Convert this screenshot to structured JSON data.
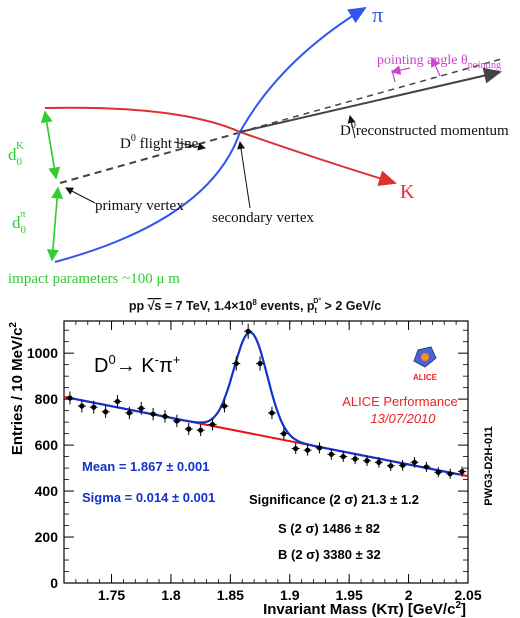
{
  "diagram": {
    "pi_label": "π",
    "k_label": "K",
    "pointing_label": "pointing angle θ",
    "pointing_sub": "pointing",
    "flight_line_label": "D",
    "flight_line_sup": "0",
    "flight_line_rest": " flight line",
    "reco_label": "D",
    "reco_sup": "0",
    "reco_rest": "reconstructed momentum",
    "primary_vertex": "primary vertex",
    "secondary_vertex": "secondary vertex",
    "d0k_main": "d",
    "d0k_sub": "0",
    "d0k_sup": "K",
    "d0pi_main": "d",
    "d0pi_sub": "0",
    "d0pi_sup": "π",
    "impact_parameters": "impact parameters ~100 μ m",
    "colors": {
      "pi_track": "#3355ee",
      "k_track": "#e03030",
      "pointing": "#cc44cc",
      "green": "#33cc33",
      "flight": "#444444"
    }
  },
  "chart_data": {
    "type": "scatter",
    "title": "pp √s = 7 TeV, 1.4×10⁸ events, p_t^{D⁰} > 2 GeV/c",
    "title_parts": {
      "a": "pp ",
      "b": "√s",
      "c": " = 7 TeV, 1.4×10",
      "d": "8",
      "e": " events, p",
      "f": "t",
      "g": "D°",
      "h": " > 2 GeV/c"
    },
    "xlabel": "Invariant Mass (Kπ) [GeV/c²]",
    "xlabel_main": "Invariant Mass (Kπ) [GeV/c",
    "xlabel_sup": "2",
    "xlabel_end": "]",
    "ylabel": "Entries / 10 MeV/c²",
    "ylabel_main": "Entries / 10 MeV/c",
    "ylabel_sup": "2",
    "xlim": [
      1.71,
      2.05
    ],
    "ylim": [
      0,
      1140
    ],
    "xticks": [
      1.75,
      1.8,
      1.85,
      1.9,
      1.95,
      2,
      2.05
    ],
    "xtick_labels": [
      "1.75",
      "1.8",
      "1.85",
      "1.9",
      "1.95",
      "2",
      "2.05"
    ],
    "yticks": [
      0,
      200,
      400,
      600,
      800,
      1000
    ],
    "ytick_labels": [
      "0",
      "200",
      "400",
      "600",
      "800",
      "1000"
    ],
    "points": {
      "x": [
        1.715,
        1.725,
        1.735,
        1.745,
        1.755,
        1.765,
        1.775,
        1.785,
        1.795,
        1.805,
        1.815,
        1.825,
        1.835,
        1.845,
        1.855,
        1.865,
        1.875,
        1.885,
        1.895,
        1.905,
        1.915,
        1.925,
        1.935,
        1.945,
        1.955,
        1.965,
        1.975,
        1.985,
        1.995,
        2.005,
        2.015,
        2.025,
        2.035,
        2.045
      ],
      "y": [
        805,
        770,
        765,
        745,
        790,
        740,
        760,
        735,
        725,
        705,
        670,
        665,
        690,
        770,
        955,
        1095,
        955,
        740,
        650,
        585,
        578,
        588,
        560,
        550,
        540,
        532,
        525,
        510,
        512,
        525,
        505,
        482,
        475,
        485
      ],
      "err": [
        28,
        28,
        28,
        27,
        28,
        27,
        28,
        27,
        27,
        27,
        26,
        26,
        26,
        28,
        31,
        33,
        31,
        27,
        25,
        24,
        24,
        24,
        24,
        23,
        23,
        23,
        23,
        23,
        23,
        23,
        22,
        22,
        22,
        22
      ]
    },
    "signal_fit": {
      "mean": 1.867,
      "sigma": 0.014,
      "amplitude": 440,
      "color": "#1133cc"
    },
    "background_fit": {
      "x": [
        1.71,
        2.05
      ],
      "y": [
        810,
        465
      ],
      "color": "#ee1111"
    },
    "decay_label": {
      "a": "D",
      "b": "0",
      "c": "→ K",
      "d": "-",
      "e": "π",
      "f": "+"
    },
    "mean_label": "Mean = 1.867 ± 0.001",
    "sigma_label": "Sigma = 0.014 ± 0.001",
    "significance_label": "Significance (2 σ) 21.3 ± 1.2",
    "s_label": "S (2 σ) 1486 ± 82",
    "b_label": "B (2 σ) 3380 ± 32",
    "alice_perf": "ALICE Performance",
    "alice_date": "13/07/2010",
    "alice_logo_text": "ALICE",
    "pwg_label": "PWG3-D2H-011",
    "colors": {
      "fit_label": "#1133cc",
      "alice": "#ee2222"
    }
  }
}
